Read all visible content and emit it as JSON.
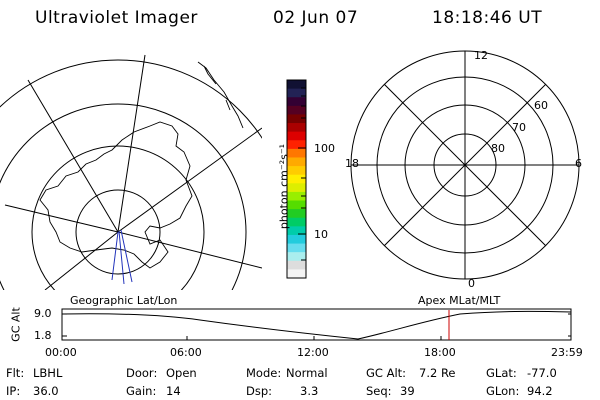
{
  "header": {
    "instrument": "Ultraviolet Imager",
    "date": "02 Jun 07",
    "time": "18:18:46 UT"
  },
  "colorbar": {
    "unit_label": "photon cm⁻²s⁻¹",
    "ticks": [
      "100",
      "10"
    ],
    "colors": [
      "#111133",
      "#222255",
      "#330033",
      "#550022",
      "#770000",
      "#aa0000",
      "#dd0000",
      "#ff2200",
      "#ff7700",
      "#ffaa00",
      "#ffcc00",
      "#ffee00",
      "#ddee00",
      "#99ee00",
      "#55dd00",
      "#22cc22",
      "#00cc66",
      "#00ccaa",
      "#22ccdd",
      "#66ddee",
      "#aaeeee",
      "#dddddd",
      "#f4f4f4"
    ]
  },
  "polar_plot": {
    "label_top": "12",
    "label_bottom": "0",
    "label_left": "18",
    "label_right": "6",
    "rings": [
      "60",
      "70",
      "80"
    ]
  },
  "geo_panel": {
    "label": "Geographic Lat/Lon"
  },
  "apex_panel": {
    "label": "Apex MLat/MLT"
  },
  "altitude_plot": {
    "ylabel": "GC Alt",
    "yticks": [
      "9.0",
      "1.8"
    ],
    "xticks": [
      "00:00",
      "06:00",
      "12:00",
      "18:00",
      "23:59"
    ],
    "marker_color": "#cc0000"
  },
  "footer": {
    "filter_label": "Flt:",
    "filter_value": "LBHL",
    "ip_label": "IP:",
    "ip_value": "36.0",
    "door_label": "Door:",
    "door_value": "Open",
    "gain_label": "Gain:",
    "gain_value": "14",
    "mode_label": "Mode:",
    "mode_value": "Normal",
    "dsp_label": "Dsp:",
    "dsp_value": "3.3",
    "gcalt_label": "GC Alt:",
    "gcalt_value": "7.2 Re",
    "seq_label": "Seq:",
    "seq_value": "39",
    "glat_label": "GLat:",
    "glat_value": "-77.0",
    "glon_label": "GLon:",
    "glon_value": "94.2"
  }
}
